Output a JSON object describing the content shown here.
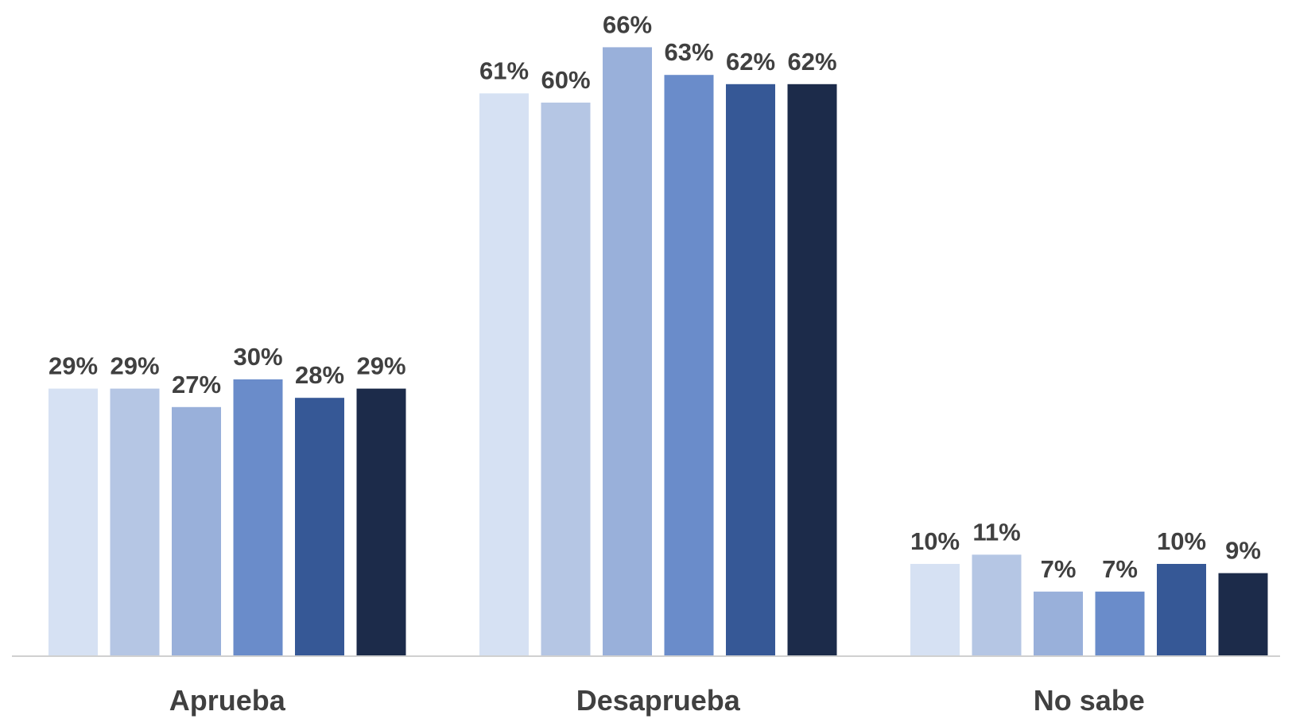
{
  "chart_data": {
    "type": "bar",
    "categories": [
      "Aprueba",
      "Desaprueba",
      "No sabe"
    ],
    "series": [
      {
        "values": [
          29,
          61,
          10
        ],
        "labels": [
          "29%",
          "61%",
          "10%"
        ],
        "color": "#D6E1F3"
      },
      {
        "values": [
          29,
          60,
          11
        ],
        "labels": [
          "29%",
          "60%",
          "11%"
        ],
        "color": "#B5C6E4"
      },
      {
        "values": [
          27,
          66,
          7
        ],
        "labels": [
          "27%",
          "66%",
          "7%"
        ],
        "color": "#99B0DA"
      },
      {
        "values": [
          30,
          63,
          7
        ],
        "labels": [
          "30%",
          "63%",
          "7%"
        ],
        "color": "#6A8CCA"
      },
      {
        "values": [
          28,
          62,
          10
        ],
        "labels": [
          "28%",
          "62%",
          "10%"
        ],
        "color": "#365896"
      },
      {
        "values": [
          29,
          62,
          9
        ],
        "labels": [
          "29%",
          "62%",
          "9%"
        ],
        "color": "#1C2B4A"
      }
    ],
    "ylim": [
      0,
      70
    ],
    "grid": false,
    "legend": "none",
    "axis_color": "#D0D0D0",
    "label_color": "#404040"
  }
}
